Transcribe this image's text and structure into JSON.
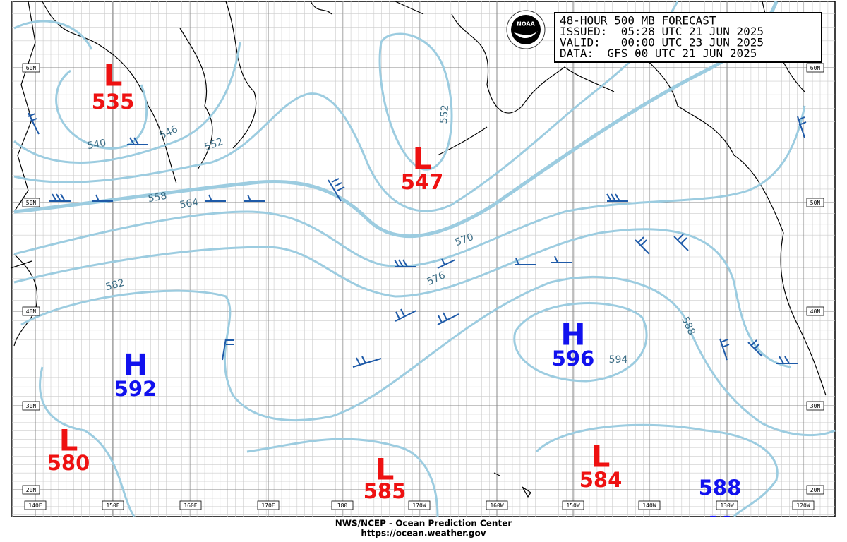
{
  "header": {
    "lines": [
      "48-HOUR 500 MB FORECAST",
      "ISSUED:  05:28 UTC 21 JUN 2025",
      "VALID:   00:00 UTC 23 JUN 2025",
      "DATA:  GFS 00 UTC 21 JUN 2025"
    ]
  },
  "logo": "NOAA",
  "systems": [
    {
      "letter": "L",
      "value": 535
    },
    {
      "letter": "L",
      "value": 547
    },
    {
      "letter": "H",
      "value": 592
    },
    {
      "letter": "H",
      "value": 596
    },
    {
      "letter": "L",
      "value": 580
    },
    {
      "letter": "L",
      "value": 585
    },
    {
      "letter": "L",
      "value": 584
    },
    {
      "letter": "H",
      "value": 588
    }
  ],
  "contour_labels": [
    540,
    546,
    552,
    552,
    558,
    564,
    570,
    576,
    582,
    588,
    594
  ],
  "lat_labels": [
    "60N",
    "50N",
    "40N",
    "30N",
    "20N"
  ],
  "lon_labels": [
    "140E",
    "150E",
    "160E",
    "170E",
    "180",
    "170W",
    "160W",
    "150W",
    "140W",
    "130W",
    "120W"
  ],
  "footer": [
    "NWS/NCEP - Ocean Prediction Center",
    "https://ocean.weather.gov"
  ]
}
